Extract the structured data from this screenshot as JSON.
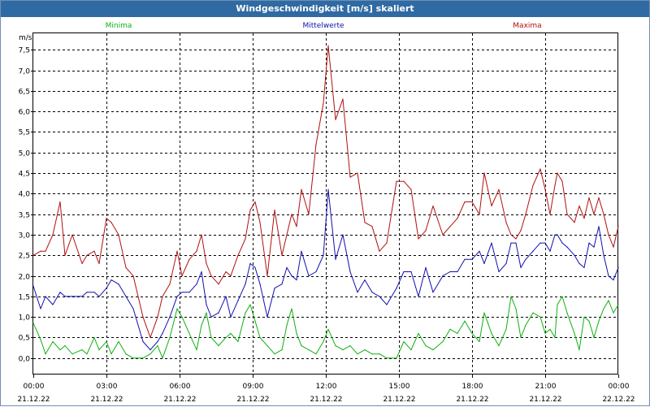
{
  "title": "Windgeschwindigkeit [m/s] skaliert",
  "chart_data": {
    "type": "line",
    "title": "Windgeschwindigkeit [m/s] skaliert",
    "ylabel": "m/s",
    "xlabel": "",
    "ylim": [
      -0.4,
      7.9
    ],
    "yticks": [
      "0,0",
      "0,5",
      "1,0",
      "1,5",
      "2,0",
      "2,5",
      "3,0",
      "3,5",
      "4,0",
      "4,5",
      "5,0",
      "5,5",
      "6,0",
      "6,5",
      "7,0",
      "7,5"
    ],
    "xlim_hours": [
      0,
      24
    ],
    "xticks": [
      {
        "time": "00:00",
        "date": "21.12.22"
      },
      {
        "time": "03:00",
        "date": "21.12.22"
      },
      {
        "time": "06:00",
        "date": "21.12.22"
      },
      {
        "time": "09:00",
        "date": "21.12.22"
      },
      {
        "time": "12:00",
        "date": "21.12.22"
      },
      {
        "time": "15:00",
        "date": "21.12.22"
      },
      {
        "time": "18:00",
        "date": "21.12.22"
      },
      {
        "time": "21:00",
        "date": "21.12.22"
      },
      {
        "time": "00:00",
        "date": "22.12.22"
      }
    ],
    "grid": true,
    "legend_placement": "top",
    "series": [
      {
        "name": "Minima",
        "color": "#10b010",
        "points": [
          [
            0.0,
            0.85
          ],
          [
            0.3,
            0.45
          ],
          [
            0.5,
            0.1
          ],
          [
            0.8,
            0.4
          ],
          [
            1.1,
            0.2
          ],
          [
            1.3,
            0.3
          ],
          [
            1.6,
            0.1
          ],
          [
            2.0,
            0.2
          ],
          [
            2.2,
            0.1
          ],
          [
            2.5,
            0.5
          ],
          [
            2.7,
            0.2
          ],
          [
            3.0,
            0.4
          ],
          [
            3.2,
            0.1
          ],
          [
            3.5,
            0.4
          ],
          [
            3.8,
            0.1
          ],
          [
            4.1,
            0.0
          ],
          [
            4.5,
            0.0
          ],
          [
            4.8,
            0.1
          ],
          [
            5.1,
            0.3
          ],
          [
            5.3,
            0.0
          ],
          [
            5.6,
            0.5
          ],
          [
            5.9,
            1.2
          ],
          [
            6.1,
            1.0
          ],
          [
            6.4,
            0.6
          ],
          [
            6.7,
            0.2
          ],
          [
            6.9,
            0.8
          ],
          [
            7.1,
            1.1
          ],
          [
            7.3,
            0.5
          ],
          [
            7.6,
            0.3
          ],
          [
            7.9,
            0.5
          ],
          [
            8.1,
            0.6
          ],
          [
            8.4,
            0.4
          ],
          [
            8.7,
            1.1
          ],
          [
            8.9,
            1.3
          ],
          [
            9.1,
            0.9
          ],
          [
            9.3,
            0.5
          ],
          [
            9.6,
            0.3
          ],
          [
            9.9,
            0.1
          ],
          [
            10.2,
            0.2
          ],
          [
            10.4,
            0.8
          ],
          [
            10.6,
            1.2
          ],
          [
            10.8,
            0.6
          ],
          [
            11.0,
            0.3
          ],
          [
            11.3,
            0.2
          ],
          [
            11.6,
            0.1
          ],
          [
            11.9,
            0.4
          ],
          [
            12.1,
            0.7
          ],
          [
            12.4,
            0.3
          ],
          [
            12.7,
            0.2
          ],
          [
            13.0,
            0.3
          ],
          [
            13.3,
            0.1
          ],
          [
            13.6,
            0.2
          ],
          [
            13.9,
            0.1
          ],
          [
            14.2,
            0.1
          ],
          [
            14.5,
            0.0
          ],
          [
            14.9,
            0.0
          ],
          [
            15.2,
            0.4
          ],
          [
            15.5,
            0.2
          ],
          [
            15.8,
            0.6
          ],
          [
            16.1,
            0.3
          ],
          [
            16.4,
            0.2
          ],
          [
            16.8,
            0.4
          ],
          [
            17.1,
            0.7
          ],
          [
            17.4,
            0.6
          ],
          [
            17.7,
            0.9
          ],
          [
            18.0,
            0.6
          ],
          [
            18.3,
            0.4
          ],
          [
            18.5,
            1.1
          ],
          [
            18.8,
            0.6
          ],
          [
            19.1,
            0.3
          ],
          [
            19.4,
            0.7
          ],
          [
            19.6,
            1.5
          ],
          [
            19.8,
            1.2
          ],
          [
            20.0,
            0.5
          ],
          [
            20.2,
            0.8
          ],
          [
            20.5,
            1.1
          ],
          [
            20.8,
            1.0
          ],
          [
            21.0,
            0.6
          ],
          [
            21.2,
            0.7
          ],
          [
            21.4,
            0.5
          ],
          [
            21.5,
            1.3
          ],
          [
            21.7,
            1.5
          ],
          [
            21.9,
            1.1
          ],
          [
            22.2,
            0.6
          ],
          [
            22.4,
            0.2
          ],
          [
            22.6,
            1.0
          ],
          [
            22.8,
            0.9
          ],
          [
            23.0,
            0.5
          ],
          [
            23.2,
            0.9
          ],
          [
            23.4,
            1.2
          ],
          [
            23.6,
            1.4
          ],
          [
            23.8,
            1.1
          ],
          [
            24.0,
            1.3
          ]
        ]
      },
      {
        "name": "Mittelwerte",
        "color": "#1010b0",
        "points": [
          [
            0.0,
            1.75
          ],
          [
            0.3,
            1.2
          ],
          [
            0.5,
            1.5
          ],
          [
            0.8,
            1.3
          ],
          [
            1.1,
            1.6
          ],
          [
            1.3,
            1.5
          ],
          [
            1.6,
            1.5
          ],
          [
            2.0,
            1.5
          ],
          [
            2.2,
            1.6
          ],
          [
            2.5,
            1.6
          ],
          [
            2.7,
            1.5
          ],
          [
            3.0,
            1.7
          ],
          [
            3.2,
            1.9
          ],
          [
            3.5,
            1.8
          ],
          [
            3.8,
            1.5
          ],
          [
            4.1,
            1.2
          ],
          [
            4.5,
            0.4
          ],
          [
            4.8,
            0.2
          ],
          [
            5.1,
            0.4
          ],
          [
            5.3,
            0.6
          ],
          [
            5.6,
            1.0
          ],
          [
            5.9,
            1.5
          ],
          [
            6.1,
            1.6
          ],
          [
            6.4,
            1.6
          ],
          [
            6.7,
            1.8
          ],
          [
            6.9,
            2.1
          ],
          [
            7.1,
            1.3
          ],
          [
            7.3,
            1.0
          ],
          [
            7.6,
            1.1
          ],
          [
            7.9,
            1.5
          ],
          [
            8.1,
            1.0
          ],
          [
            8.4,
            1.4
          ],
          [
            8.7,
            1.8
          ],
          [
            8.9,
            2.3
          ],
          [
            9.1,
            2.2
          ],
          [
            9.3,
            1.8
          ],
          [
            9.6,
            1.0
          ],
          [
            9.9,
            1.7
          ],
          [
            10.2,
            1.8
          ],
          [
            10.4,
            2.2
          ],
          [
            10.6,
            2.0
          ],
          [
            10.8,
            1.9
          ],
          [
            11.0,
            2.6
          ],
          [
            11.3,
            2.0
          ],
          [
            11.6,
            2.1
          ],
          [
            11.9,
            2.5
          ],
          [
            12.1,
            4.1
          ],
          [
            12.4,
            2.4
          ],
          [
            12.7,
            3.0
          ],
          [
            13.0,
            2.1
          ],
          [
            13.3,
            1.6
          ],
          [
            13.6,
            1.9
          ],
          [
            13.9,
            1.6
          ],
          [
            14.2,
            1.5
          ],
          [
            14.5,
            1.3
          ],
          [
            14.9,
            1.7
          ],
          [
            15.2,
            2.1
          ],
          [
            15.5,
            2.1
          ],
          [
            15.8,
            1.5
          ],
          [
            16.1,
            2.2
          ],
          [
            16.4,
            1.6
          ],
          [
            16.8,
            2.0
          ],
          [
            17.1,
            2.1
          ],
          [
            17.4,
            2.1
          ],
          [
            17.7,
            2.4
          ],
          [
            18.0,
            2.4
          ],
          [
            18.3,
            2.6
          ],
          [
            18.5,
            2.3
          ],
          [
            18.8,
            2.8
          ],
          [
            19.1,
            2.1
          ],
          [
            19.4,
            2.3
          ],
          [
            19.6,
            2.8
          ],
          [
            19.8,
            2.8
          ],
          [
            20.0,
            2.2
          ],
          [
            20.2,
            2.4
          ],
          [
            20.5,
            2.6
          ],
          [
            20.8,
            2.8
          ],
          [
            21.0,
            2.8
          ],
          [
            21.2,
            2.6
          ],
          [
            21.4,
            3.0
          ],
          [
            21.5,
            3.0
          ],
          [
            21.7,
            2.8
          ],
          [
            21.9,
            2.7
          ],
          [
            22.2,
            2.5
          ],
          [
            22.4,
            2.3
          ],
          [
            22.6,
            2.2
          ],
          [
            22.8,
            2.8
          ],
          [
            23.0,
            2.7
          ],
          [
            23.2,
            3.2
          ],
          [
            23.4,
            2.5
          ],
          [
            23.6,
            2.0
          ],
          [
            23.8,
            1.9
          ],
          [
            24.0,
            2.2
          ]
        ]
      },
      {
        "name": "Maxima",
        "color": "#b01010",
        "points": [
          [
            0.0,
            2.5
          ],
          [
            0.3,
            2.6
          ],
          [
            0.5,
            2.6
          ],
          [
            0.8,
            3.0
          ],
          [
            1.1,
            3.8
          ],
          [
            1.3,
            2.5
          ],
          [
            1.6,
            3.0
          ],
          [
            2.0,
            2.3
          ],
          [
            2.2,
            2.5
          ],
          [
            2.5,
            2.6
          ],
          [
            2.7,
            2.3
          ],
          [
            3.0,
            3.4
          ],
          [
            3.2,
            3.3
          ],
          [
            3.5,
            3.0
          ],
          [
            3.8,
            2.2
          ],
          [
            4.1,
            2.0
          ],
          [
            4.5,
            1.0
          ],
          [
            4.8,
            0.5
          ],
          [
            5.1,
            1.0
          ],
          [
            5.3,
            1.5
          ],
          [
            5.6,
            1.8
          ],
          [
            5.9,
            2.6
          ],
          [
            6.1,
            2.0
          ],
          [
            6.4,
            2.4
          ],
          [
            6.7,
            2.6
          ],
          [
            6.9,
            3.0
          ],
          [
            7.1,
            2.3
          ],
          [
            7.3,
            2.0
          ],
          [
            7.6,
            1.8
          ],
          [
            7.9,
            2.1
          ],
          [
            8.1,
            2.0
          ],
          [
            8.4,
            2.5
          ],
          [
            8.7,
            2.9
          ],
          [
            8.9,
            3.6
          ],
          [
            9.1,
            3.8
          ],
          [
            9.3,
            3.3
          ],
          [
            9.6,
            2.0
          ],
          [
            9.9,
            3.6
          ],
          [
            10.2,
            2.5
          ],
          [
            10.4,
            3.0
          ],
          [
            10.6,
            3.5
          ],
          [
            10.8,
            3.2
          ],
          [
            11.0,
            4.1
          ],
          [
            11.3,
            3.5
          ],
          [
            11.6,
            5.2
          ],
          [
            11.9,
            6.2
          ],
          [
            12.1,
            7.6
          ],
          [
            12.4,
            5.8
          ],
          [
            12.7,
            6.3
          ],
          [
            13.0,
            4.4
          ],
          [
            13.3,
            4.5
          ],
          [
            13.6,
            3.3
          ],
          [
            13.9,
            3.2
          ],
          [
            14.2,
            2.6
          ],
          [
            14.5,
            2.8
          ],
          [
            14.9,
            4.3
          ],
          [
            15.2,
            4.3
          ],
          [
            15.5,
            4.1
          ],
          [
            15.8,
            2.9
          ],
          [
            16.1,
            3.1
          ],
          [
            16.4,
            3.7
          ],
          [
            16.8,
            3.0
          ],
          [
            17.1,
            3.2
          ],
          [
            17.4,
            3.4
          ],
          [
            17.7,
            3.8
          ],
          [
            18.0,
            3.8
          ],
          [
            18.3,
            3.5
          ],
          [
            18.5,
            4.5
          ],
          [
            18.8,
            3.7
          ],
          [
            19.1,
            4.1
          ],
          [
            19.4,
            3.3
          ],
          [
            19.6,
            3.0
          ],
          [
            19.8,
            2.9
          ],
          [
            20.0,
            3.1
          ],
          [
            20.2,
            3.5
          ],
          [
            20.5,
            4.2
          ],
          [
            20.8,
            4.6
          ],
          [
            21.0,
            4.1
          ],
          [
            21.2,
            3.5
          ],
          [
            21.4,
            4.2
          ],
          [
            21.5,
            4.5
          ],
          [
            21.7,
            4.3
          ],
          [
            21.9,
            3.5
          ],
          [
            22.2,
            3.3
          ],
          [
            22.4,
            3.7
          ],
          [
            22.6,
            3.4
          ],
          [
            22.8,
            3.9
          ],
          [
            23.0,
            3.5
          ],
          [
            23.2,
            3.9
          ],
          [
            23.4,
            3.5
          ],
          [
            23.6,
            3.0
          ],
          [
            23.8,
            2.7
          ],
          [
            24.0,
            3.2
          ]
        ]
      }
    ]
  }
}
